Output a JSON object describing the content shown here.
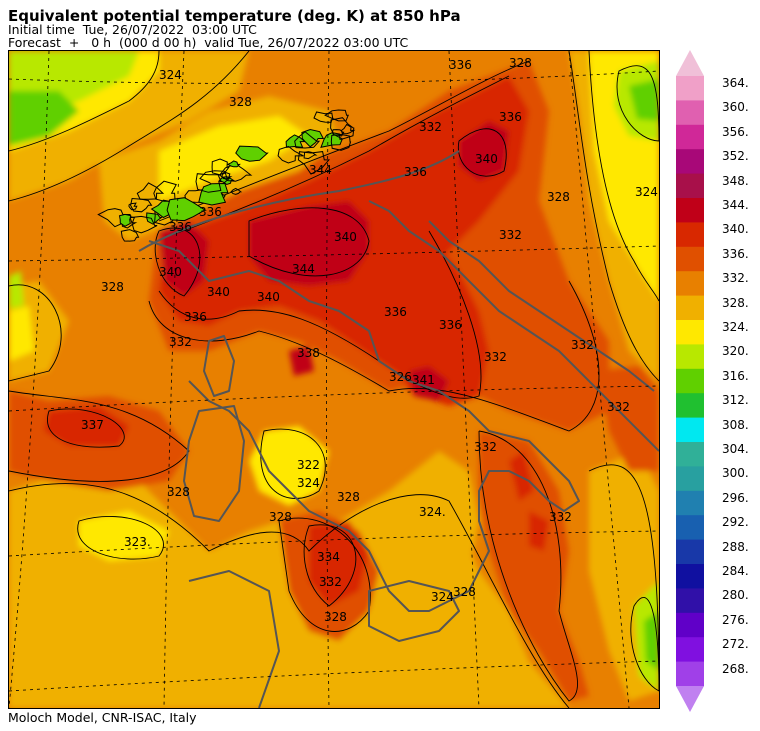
{
  "header": {
    "title": "Equivalent potential temperature (deg. K) at 850 hPa",
    "initial_time": "Initial time  Tue, 26/07/2022  03:00 UTC",
    "forecast": "Forecast  +   0 h  (000 d 00 h)  valid Tue, 26/07/2022 03:00 UTC"
  },
  "footer": {
    "credit": "Moloch Model, CNR-ISAC, Italy"
  },
  "colorbar": {
    "levels": [
      "364.",
      "360.",
      "356.",
      "352.",
      "348.",
      "344.",
      "340.",
      "336.",
      "332.",
      "328.",
      "324.",
      "320.",
      "316.",
      "312.",
      "308.",
      "304.",
      "300.",
      "296.",
      "292.",
      "288.",
      "284.",
      "280.",
      "276.",
      "272.",
      "268."
    ],
    "colors": [
      "#f0a0c8",
      "#e060b0",
      "#d02898",
      "#a80878",
      "#a8104a",
      "#c00018",
      "#d82800",
      "#e05000",
      "#e88000",
      "#f0b000",
      "#ffe800",
      "#b8e800",
      "#60d000",
      "#20c030",
      "#00e8f0",
      "#30b098",
      "#28a0a0",
      "#2080b0",
      "#1860b0",
      "#1838a8",
      "#1010a0",
      "#3010a8",
      "#6000c8",
      "#8010e0",
      "#a040e8"
    ],
    "top_triangle_color": "#f0c0d8",
    "bottom_triangle_color": "#c080f0"
  },
  "map": {
    "contour_labels": [
      "336",
      "328",
      "324",
      "328",
      "336",
      "340",
      "336",
      "332",
      "328",
      "324",
      "332",
      "336",
      "340",
      "344",
      "340",
      "336",
      "332",
      "328",
      "336",
      "340",
      "344",
      "340",
      "336",
      "336",
      "332",
      "338",
      "332",
      "337",
      "332",
      "328",
      "322",
      "324",
      "328",
      "324.",
      "323.",
      "334",
      "332",
      "328",
      "324",
      "328",
      "332",
      "332",
      "328",
      "326",
      "341"
    ]
  }
}
